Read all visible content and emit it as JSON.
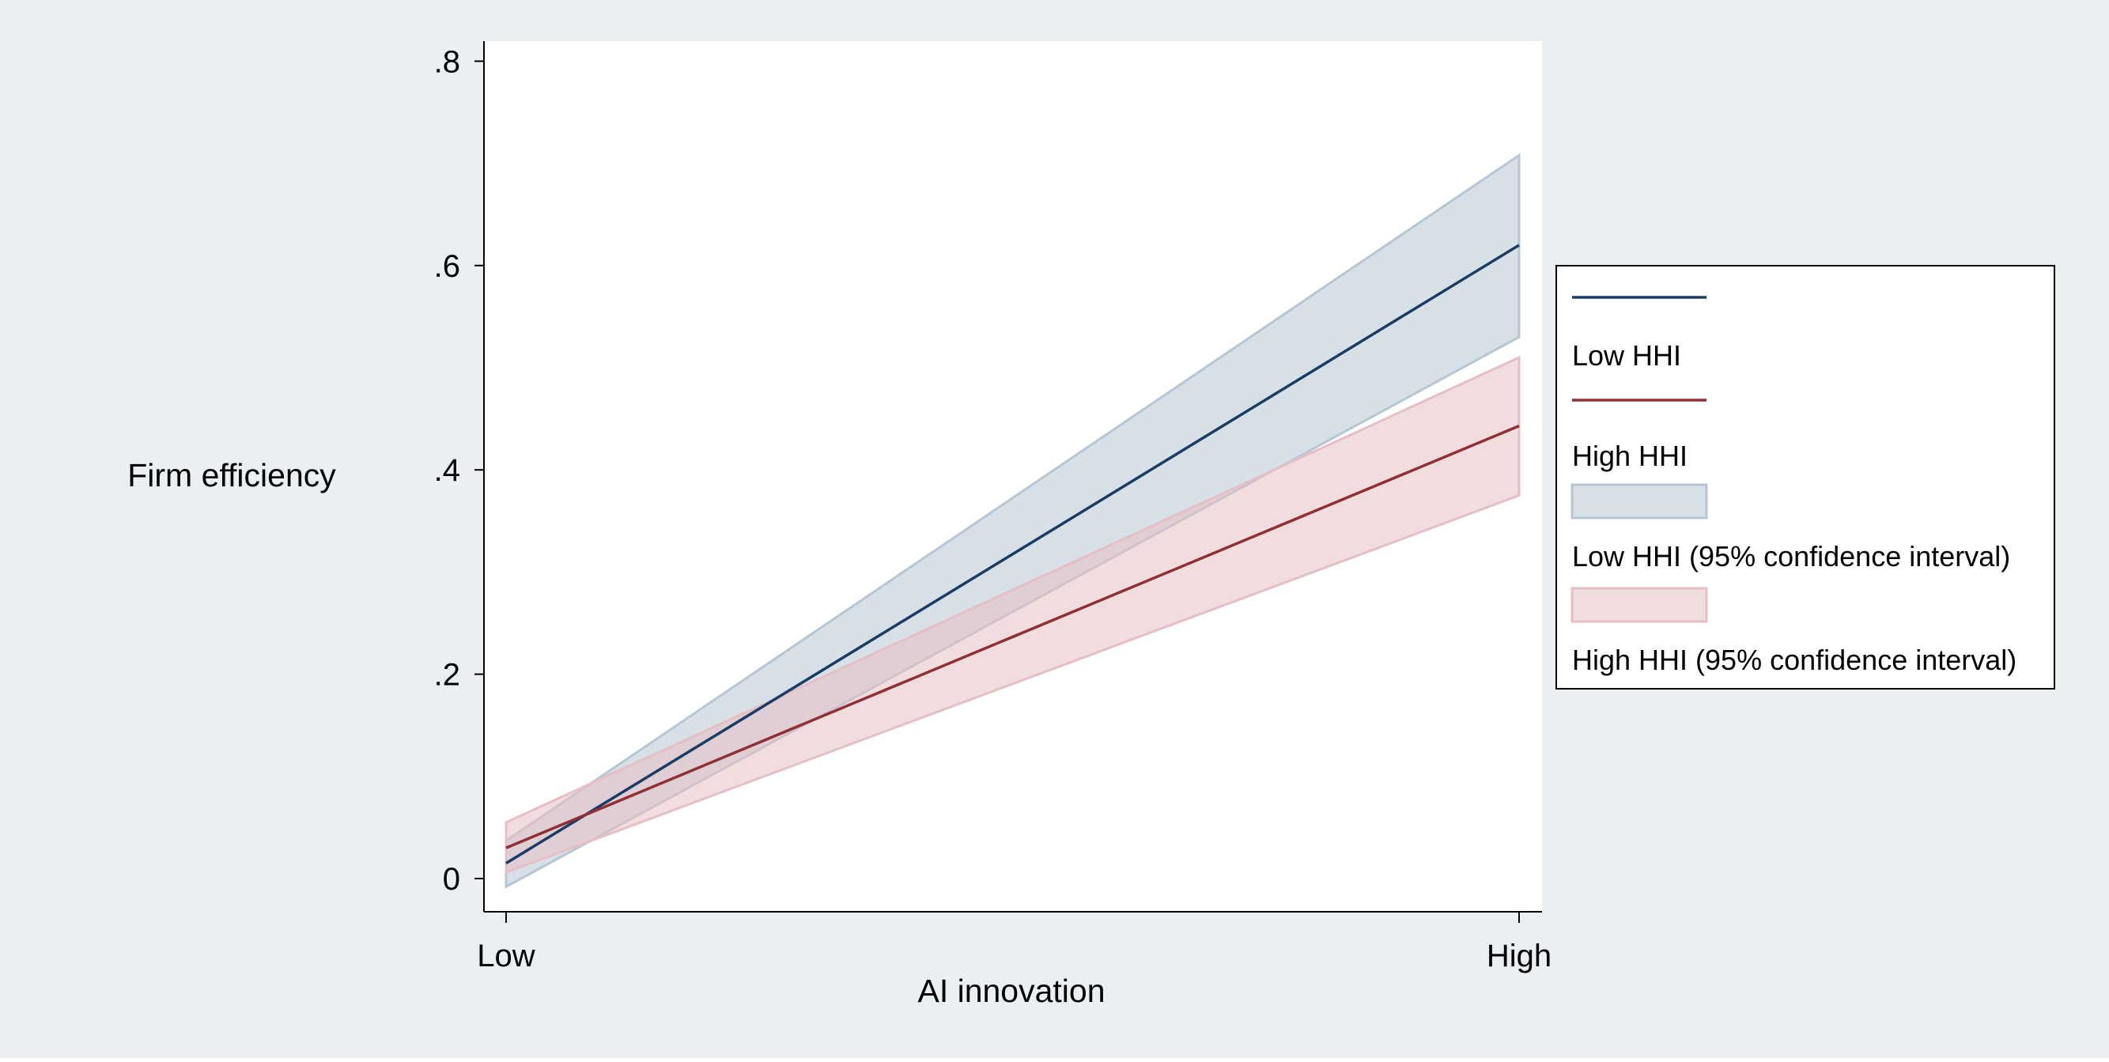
{
  "chart_data": {
    "type": "line",
    "title": "",
    "xlabel": "AI innovation",
    "ylabel": "Firm efficiency",
    "categories": [
      "Low",
      "High"
    ],
    "ylim": [
      0,
      0.8
    ],
    "yticks": [
      0,
      0.2,
      0.4,
      0.6,
      0.8
    ],
    "ytick_labels": [
      "0",
      ".2",
      ".4",
      ".6",
      ".8"
    ],
    "grid": false,
    "legend_position": "right",
    "series": [
      {
        "name": "Low HHI",
        "kind": "line",
        "values": [
          0.015,
          0.62
        ],
        "color": "#1a3d66"
      },
      {
        "name": "High HHI",
        "kind": "line",
        "values": [
          0.03,
          0.443
        ],
        "color": "#903035"
      },
      {
        "name": "Low HHI (95% confidence interval)",
        "kind": "band",
        "lower": [
          -0.008,
          0.53
        ],
        "upper": [
          0.037,
          0.708
        ],
        "color": "#b7c6d4"
      },
      {
        "name": "High HHI (95% confidence interval)",
        "kind": "band",
        "lower": [
          0.006,
          0.375
        ],
        "upper": [
          0.055,
          0.51
        ],
        "color": "#e5bfc3"
      }
    ]
  },
  "colors": {
    "background": "#eaf0f2",
    "plot_background": "#ffffff",
    "axis": "#000000"
  }
}
